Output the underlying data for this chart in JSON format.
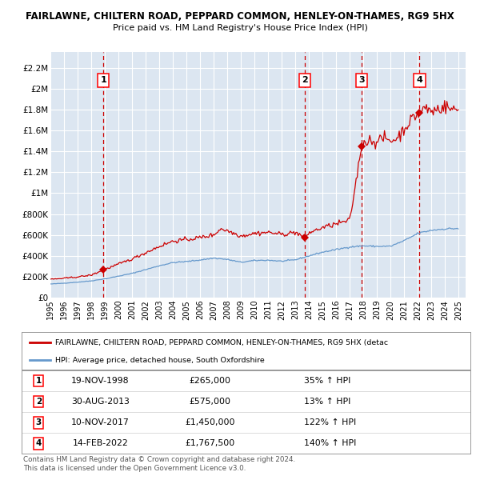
{
  "title1": "FAIRLAWNE, CHILTERN ROAD, PEPPARD COMMON, HENLEY-ON-THAMES, RG9 5HX",
  "title2": "Price paid vs. HM Land Registry's House Price Index (HPI)",
  "ylabel_ticks": [
    "£0",
    "£200K",
    "£400K",
    "£600K",
    "£800K",
    "£1M",
    "£1.2M",
    "£1.4M",
    "£1.6M",
    "£1.8M",
    "£2M",
    "£2.2M"
  ],
  "ylabel_values": [
    0,
    200000,
    400000,
    600000,
    800000,
    1000000,
    1200000,
    1400000,
    1600000,
    1800000,
    2000000,
    2200000
  ],
  "ylim": [
    0,
    2350000
  ],
  "xmin": 1995.0,
  "xmax": 2025.5,
  "plot_bg": "#dce6f1",
  "grid_color": "#ffffff",
  "sale_color": "#cc0000",
  "hpi_color": "#6699cc",
  "legend_label_sale": "FAIRLAWNE, CHILTERN ROAD, PEPPARD COMMON, HENLEY-ON-THAMES, RG9 5HX (detac",
  "legend_label_hpi": "HPI: Average price, detached house, South Oxfordshire",
  "sales": [
    {
      "num": 1,
      "date_x": 1998.89,
      "price": 265000
    },
    {
      "num": 2,
      "date_x": 2013.66,
      "price": 575000
    },
    {
      "num": 3,
      "date_x": 2017.86,
      "price": 1450000
    },
    {
      "num": 4,
      "date_x": 2022.12,
      "price": 1767500
    }
  ],
  "table_rows": [
    [
      1,
      "19-NOV-1998",
      "£265,000",
      "35% ↑ HPI"
    ],
    [
      2,
      "30-AUG-2013",
      "£575,000",
      "13% ↑ HPI"
    ],
    [
      3,
      "10-NOV-2017",
      "£1,450,000",
      "122% ↑ HPI"
    ],
    [
      4,
      "14-FEB-2022",
      "£1,767,500",
      "140% ↑ HPI"
    ]
  ],
  "footer": "Contains HM Land Registry data © Crown copyright and database right 2024.\nThis data is licensed under the Open Government Licence v3.0."
}
